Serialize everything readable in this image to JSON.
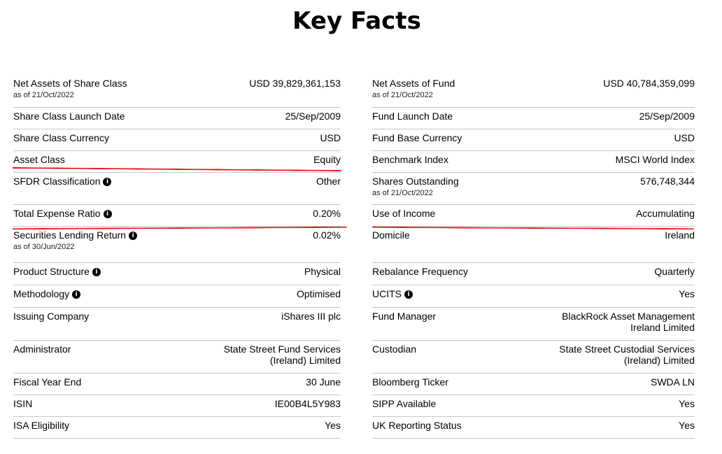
{
  "title": "Key Facts",
  "left": [
    {
      "label": "Net Assets of Share Class",
      "sub": "as of 21/Oct/2022",
      "value": "USD 39,829,361,153",
      "info": false
    },
    {
      "label": "Share Class Launch Date",
      "sub": "",
      "value": "25/Sep/2009",
      "info": false
    },
    {
      "label": "Share Class Currency",
      "sub": "",
      "value": "USD",
      "info": false
    },
    {
      "label": "Asset Class",
      "sub": "",
      "value": "Equity",
      "info": false
    },
    {
      "label": "SFDR Classification",
      "sub": "",
      "value": "Other",
      "info": true
    },
    {
      "label": "Total Expense Ratio",
      "sub": "",
      "value": "0.20%",
      "info": true
    },
    {
      "label": "Securities Lending Return",
      "sub": "as of 30/Jun/2022",
      "value": "0.02%",
      "info": true
    },
    {
      "label": "Product Structure",
      "sub": "",
      "value": "Physical",
      "info": true
    },
    {
      "label": "Methodology",
      "sub": "",
      "value": "Optimised",
      "info": true
    },
    {
      "label": "Issuing Company",
      "sub": "",
      "value": "iShares III plc",
      "info": false
    },
    {
      "label": "Administrator",
      "sub": "",
      "value": "State Street Fund Services\n(Ireland) Limited",
      "info": false
    },
    {
      "label": "Fiscal Year End",
      "sub": "",
      "value": "30 June",
      "info": false
    },
    {
      "label": "ISIN",
      "sub": "",
      "value": "IE00B4L5Y983",
      "info": false
    },
    {
      "label": "ISA Eligibility",
      "sub": "",
      "value": "Yes",
      "info": false
    }
  ],
  "right": [
    {
      "label": "Net Assets of Fund",
      "sub": "as of 21/Oct/2022",
      "value": "USD 40,784,359,099",
      "info": false
    },
    {
      "label": "Fund Launch Date",
      "sub": "",
      "value": "25/Sep/2009",
      "info": false
    },
    {
      "label": "Fund Base Currency",
      "sub": "",
      "value": "USD",
      "info": false
    },
    {
      "label": "Benchmark Index",
      "sub": "",
      "value": "MSCI World Index",
      "info": false
    },
    {
      "label": "Shares Outstanding",
      "sub": "as of 21/Oct/2022",
      "value": "576,748,344",
      "info": false
    },
    {
      "label": "Use of Income",
      "sub": "",
      "value": "Accumulating",
      "info": false
    },
    {
      "label": "Domicile",
      "sub": "",
      "value": "Ireland",
      "info": false
    },
    {
      "label": "Rebalance Frequency",
      "sub": "",
      "value": "Quarterly",
      "info": false
    },
    {
      "label": "UCITS",
      "sub": "",
      "value": "Yes",
      "info": true
    },
    {
      "label": "Fund Manager",
      "sub": "",
      "value": "BlackRock Asset Management\nIreland Limited",
      "info": false
    },
    {
      "label": "Custodian",
      "sub": "",
      "value": "State Street Custodial Services\n(Ireland) Limited",
      "info": false
    },
    {
      "label": "Bloomberg Ticker",
      "sub": "",
      "value": "SWDA LN",
      "info": false
    },
    {
      "label": "SIPP Available",
      "sub": "",
      "value": "Yes",
      "info": false
    },
    {
      "label": "UK Reporting Status",
      "sub": "",
      "value": "Yes",
      "info": false
    }
  ],
  "info_glyph": "i",
  "colors": {
    "annotation": "#e8141c",
    "divider": "#c8c8c8"
  }
}
